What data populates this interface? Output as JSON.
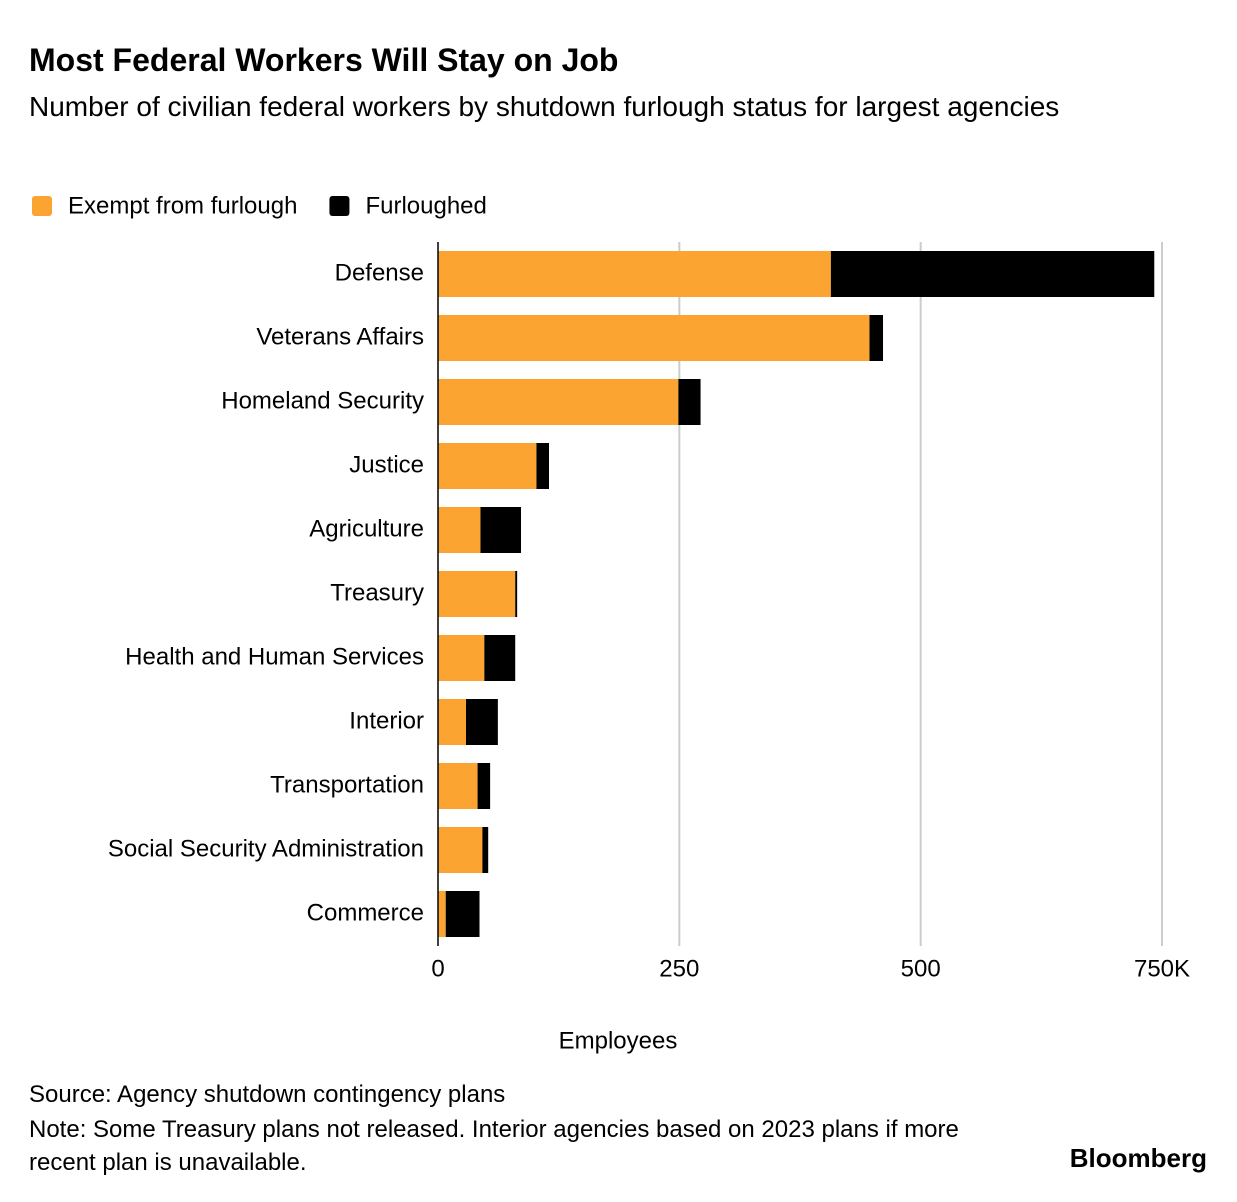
{
  "chart_data": {
    "type": "stacked-bar-horizontal",
    "title": "Most Federal Workers Will Stay on Job",
    "subtitle": "Number of civilian federal workers by shutdown furlough status for largest agencies",
    "categories": [
      "Defense",
      "Veterans Affairs",
      "Homeland Security",
      "Justice",
      "Agriculture",
      "Treasury",
      "Health and Human Services",
      "Interior",
      "Transportation",
      "Social Security Administration",
      "Commerce"
    ],
    "series": [
      {
        "name": "Exempt from furlough",
        "color": "#fba431",
        "values": [
          407,
          447,
          249,
          102,
          44,
          80,
          48,
          29,
          41,
          46,
          8
        ]
      },
      {
        "name": "Furloughed",
        "color": "#000000",
        "values": [
          335,
          14,
          23,
          13,
          42,
          2,
          32,
          33,
          13,
          6,
          35
        ]
      }
    ],
    "xlim": [
      0,
      750
    ],
    "xticks": [
      0,
      250,
      500,
      {
        "value": 750,
        "label": "750K"
      }
    ],
    "x_label": "Employees",
    "grid": true,
    "source": "Source: Agency shutdown contingency plans",
    "note": "Note: Some Treasury plans not released. Interior agencies based on 2023 plans if more recent plan is unavailable.",
    "brand": "Bloomberg"
  }
}
